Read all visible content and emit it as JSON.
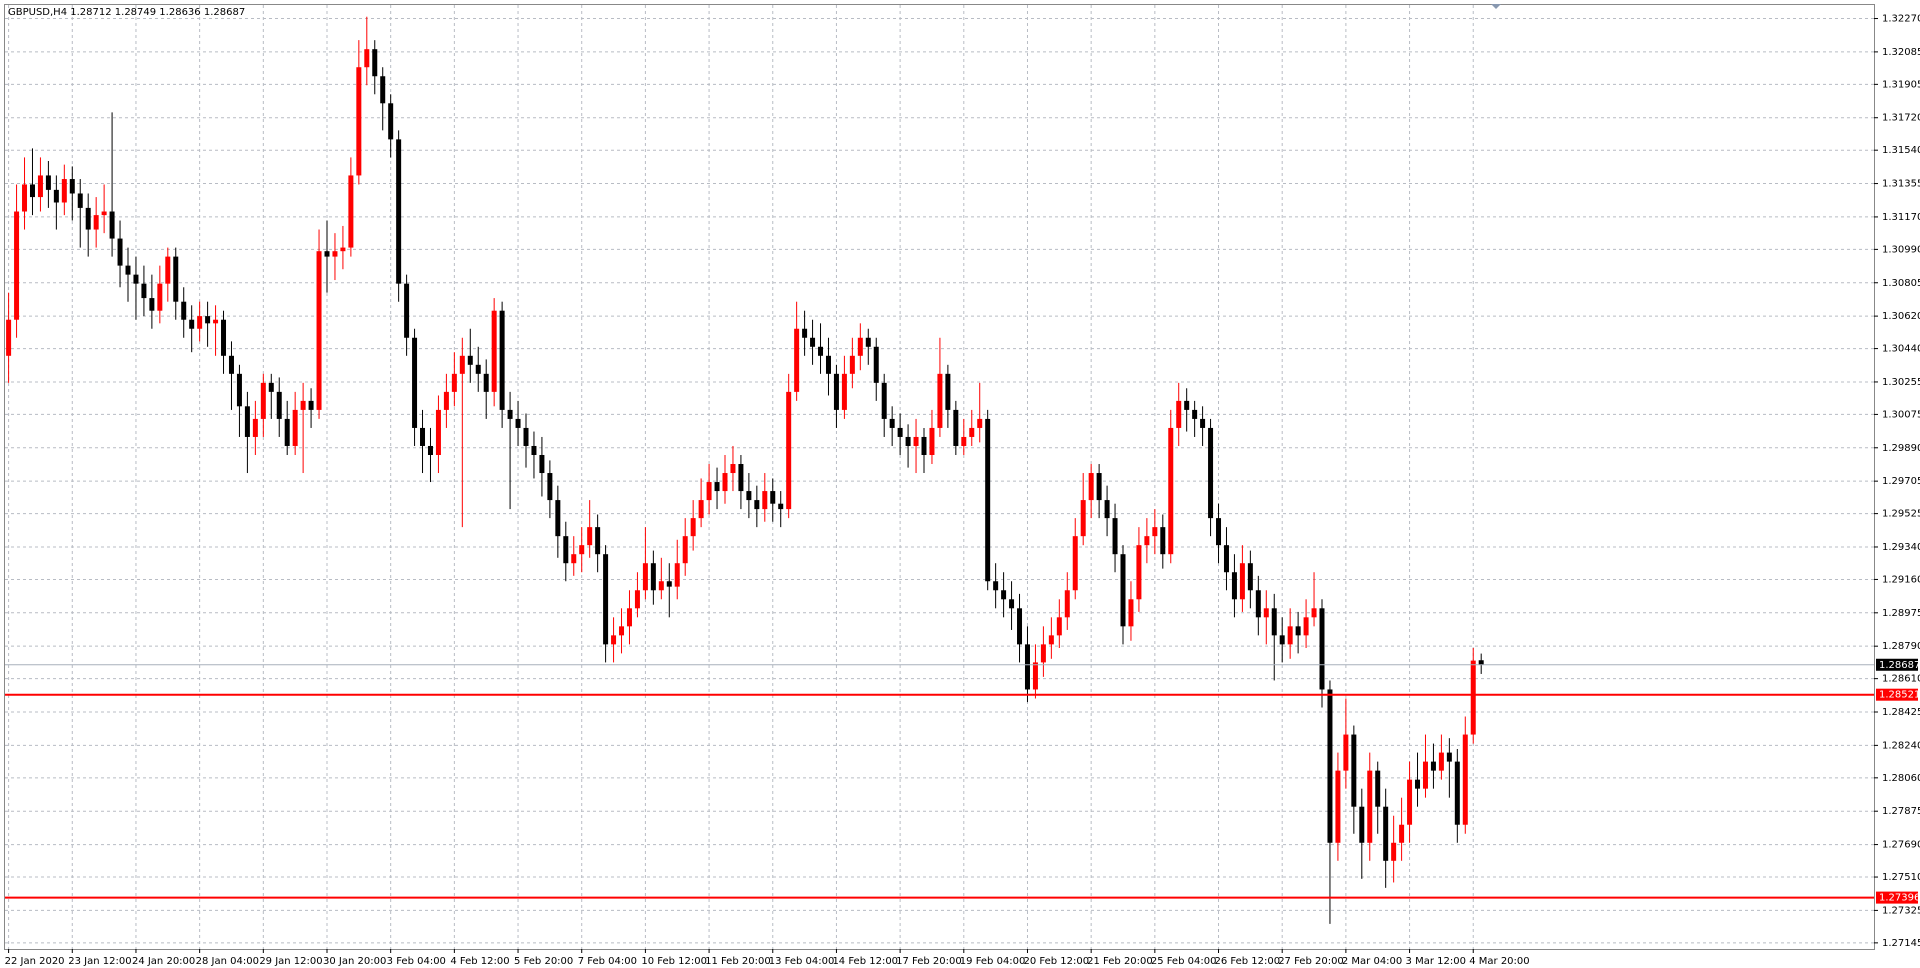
{
  "chart_data": {
    "type": "candlestick",
    "title": "GBPUSD,H4  1.28712 1.28749 1.28636 1.28687",
    "up_color": "#ff0000",
    "down_color": "#000000",
    "grid": true,
    "categories": [
      "22 Jan 2020",
      null,
      null,
      null,
      null,
      null,
      null,
      null,
      "23 Jan 12:00",
      null,
      null,
      null,
      null,
      null,
      null,
      null,
      "24 Jan 20:00",
      null,
      null,
      null,
      null,
      null,
      null,
      null,
      "28 Jan 04:00",
      null,
      null,
      null,
      null,
      null,
      null,
      null,
      "29 Jan 12:00",
      null,
      null,
      null,
      null,
      null,
      null,
      null,
      "30 Jan 20:00",
      null,
      null,
      null,
      null,
      null,
      null,
      null,
      "3 Feb 04:00",
      null,
      null,
      null,
      null,
      null,
      null,
      null,
      "4 Feb 12:00",
      null,
      null,
      null,
      null,
      null,
      null,
      null,
      "5 Feb 20:00",
      null,
      null,
      null,
      null,
      null,
      null,
      null,
      "7 Feb 04:00",
      null,
      null,
      null,
      null,
      null,
      null,
      null,
      "10 Feb 12:00",
      null,
      null,
      null,
      null,
      null,
      null,
      null,
      "11 Feb 20:00",
      null,
      null,
      null,
      null,
      null,
      null,
      null,
      "13 Feb 04:00",
      null,
      null,
      null,
      null,
      null,
      null,
      null,
      "14 Feb 12:00",
      null,
      null,
      null,
      null,
      null,
      null,
      null,
      "17 Feb 20:00",
      null,
      null,
      null,
      null,
      null,
      null,
      null,
      "19 Feb 04:00",
      null,
      null,
      null,
      null,
      null,
      null,
      null,
      "20 Feb 12:00",
      null,
      null,
      null,
      null,
      null,
      null,
      null,
      "21 Feb 20:00",
      null,
      null,
      null,
      null,
      null,
      null,
      null,
      "25 Feb 04:00",
      null,
      null,
      null,
      null,
      null,
      null,
      null,
      "26 Feb 12:00",
      null,
      null,
      null,
      null,
      null,
      null,
      null,
      "27 Feb 20:00",
      null,
      null,
      null,
      null,
      null,
      null,
      null,
      "2 Mar 04:00",
      null,
      null,
      null,
      null,
      null,
      null,
      null,
      "3 Mar 12:00",
      null,
      null,
      null,
      null,
      null,
      null,
      null,
      "4 Mar 20:00",
      null
    ],
    "open": [
      1.304,
      1.306,
      1.312,
      1.3135,
      1.3128,
      1.314,
      1.3132,
      1.3125,
      1.3138,
      1.313,
      1.3122,
      1.311,
      1.3118,
      1.312,
      1.3105,
      1.309,
      1.3085,
      1.308,
      1.3072,
      1.3065,
      1.308,
      1.3095,
      1.307,
      1.306,
      1.3055,
      1.3062,
      1.3058,
      1.306,
      1.304,
      1.303,
      1.3012,
      1.2995,
      1.3005,
      1.3025,
      1.302,
      1.3005,
      1.299,
      1.301,
      1.3015,
      1.301,
      1.3098,
      1.3095,
      1.3098,
      1.31,
      1.314,
      1.32,
      1.321,
      1.3195,
      1.318,
      1.316,
      1.308,
      1.305,
      1.3,
      1.299,
      1.2985,
      1.301,
      1.302,
      1.303,
      1.304,
      1.3035,
      1.303,
      1.302,
      1.3065,
      1.301,
      1.3005,
      1.3,
      1.299,
      1.2985,
      1.2975,
      1.296,
      1.294,
      1.2925,
      1.293,
      1.2935,
      1.2945,
      1.293,
      1.288,
      1.2885,
      1.289,
      1.29,
      1.291,
      1.2925,
      1.291,
      1.2915,
      1.2912,
      1.2925,
      1.294,
      1.295,
      1.296,
      1.297,
      1.2965,
      1.2975,
      1.298,
      1.2965,
      1.296,
      1.2955,
      1.2965,
      1.2958,
      1.2955,
      1.302,
      1.3055,
      1.305,
      1.3045,
      1.304,
      1.303,
      1.301,
      1.303,
      1.304,
      1.305,
      1.3045,
      1.3025,
      1.3005,
      1.3,
      1.2995,
      1.299,
      1.2995,
      1.2985,
      1.3,
      1.303,
      1.301,
      1.299,
      1.2995,
      1.3,
      1.3005,
      1.2915,
      1.291,
      1.2905,
      1.29,
      1.288,
      1.2855,
      1.287,
      1.288,
      1.2885,
      1.2895,
      1.291,
      1.294,
      1.296,
      1.2975,
      1.296,
      1.295,
      1.293,
      1.289,
      1.2905,
      1.2935,
      1.294,
      1.2945,
      1.293,
      1.3,
      1.3015,
      1.301,
      1.3005,
      1.3,
      1.295,
      1.2935,
      1.292,
      1.2905,
      1.2925,
      1.291,
      1.2895,
      1.29,
      1.2885,
      1.288,
      1.289,
      1.2885,
      1.2895,
      1.29,
      1.2855,
      1.277,
      1.281,
      1.283,
      1.279,
      1.277,
      1.281,
      1.279,
      1.276,
      1.277,
      1.278,
      1.2805,
      1.28,
      1.2815,
      1.281,
      1.282,
      1.2815,
      1.278,
      1.283,
      1.28712
    ],
    "high": [
      1.3075,
      1.3135,
      1.315,
      1.3155,
      1.315,
      1.3148,
      1.314,
      1.3146,
      1.3145,
      1.3138,
      1.313,
      1.3128,
      1.3135,
      1.3175,
      1.3115,
      1.31,
      1.3095,
      1.309,
      1.3085,
      1.309,
      1.31,
      1.31,
      1.3078,
      1.3068,
      1.307,
      1.307,
      1.3068,
      1.3065,
      1.3048,
      1.3035,
      1.302,
      1.3015,
      1.303,
      1.303,
      1.3028,
      1.3015,
      1.302,
      1.3025,
      1.3022,
      1.311,
      1.3115,
      1.3108,
      1.3112,
      1.315,
      1.3215,
      1.3228,
      1.3215,
      1.32,
      1.3185,
      1.3165,
      1.3085,
      1.3055,
      1.301,
      1.3,
      1.3018,
      1.303,
      1.3042,
      1.305,
      1.3055,
      1.3045,
      1.3038,
      1.3072,
      1.307,
      1.302,
      1.3015,
      1.3008,
      1.2998,
      1.2995,
      1.2982,
      1.2968,
      1.2948,
      1.294,
      1.2945,
      1.296,
      1.2952,
      1.2935,
      1.2895,
      1.29,
      1.291,
      1.292,
      1.2945,
      1.2932,
      1.2928,
      1.2925,
      1.2938,
      1.295,
      1.296,
      1.2972,
      1.298,
      1.2978,
      1.2985,
      1.299,
      1.2985,
      1.2975,
      1.2968,
      1.2975,
      1.2972,
      1.2965,
      1.303,
      1.307,
      1.3065,
      1.306,
      1.3058,
      1.305,
      1.3035,
      1.304,
      1.305,
      1.3058,
      1.3055,
      1.305,
      1.303,
      1.3012,
      1.3008,
      1.3002,
      1.3005,
      1.3,
      1.301,
      1.305,
      1.3035,
      1.3015,
      1.3005,
      1.301,
      1.3025,
      1.301,
      1.2925,
      1.292,
      1.2915,
      1.2908,
      1.289,
      1.288,
      1.289,
      1.2895,
      1.2905,
      1.292,
      1.295,
      1.2975,
      1.298,
      1.298,
      1.2968,
      1.2958,
      1.2935,
      1.2915,
      1.2945,
      1.295,
      1.2955,
      1.2952,
      1.301,
      1.3025,
      1.3022,
      1.3015,
      1.3012,
      1.3005,
      1.2958,
      1.2945,
      1.293,
      1.2935,
      1.2932,
      1.2918,
      1.291,
      1.2908,
      1.2895,
      1.29,
      1.2898,
      1.2905,
      1.292,
      1.2905,
      1.286,
      1.282,
      1.285,
      1.2835,
      1.28,
      1.282,
      1.2815,
      1.28,
      1.2785,
      1.2795,
      1.2815,
      1.282,
      1.283,
      1.2825,
      1.283,
      1.2828,
      1.2822,
      1.284,
      1.2878,
      1.28749
    ],
    "low": [
      1.3025,
      1.305,
      1.311,
      1.3118,
      1.312,
      1.3122,
      1.311,
      1.3118,
      1.3115,
      1.31,
      1.3095,
      1.31,
      1.3108,
      1.3095,
      1.3078,
      1.307,
      1.306,
      1.3062,
      1.3055,
      1.3058,
      1.307,
      1.306,
      1.305,
      1.3042,
      1.3048,
      1.3045,
      1.304,
      1.303,
      1.301,
      1.2995,
      1.2975,
      1.2985,
      1.2995,
      1.3005,
      1.2995,
      1.2985,
      1.2985,
      1.2975,
      1.3,
      1.3005,
      1.3075,
      1.3082,
      1.3088,
      1.3095,
      1.3135,
      1.319,
      1.3185,
      1.3165,
      1.315,
      1.307,
      1.304,
      1.299,
      1.2975,
      1.297,
      1.2975,
      1.3,
      1.3012,
      1.2945,
      1.3025,
      1.302,
      1.3005,
      1.3012,
      1.3,
      1.2955,
      1.299,
      1.2978,
      1.2972,
      1.2962,
      1.295,
      1.2928,
      1.2915,
      1.2918,
      1.292,
      1.2928,
      1.292,
      1.287,
      1.287,
      1.2875,
      1.288,
      1.2895,
      1.2905,
      1.2902,
      1.2905,
      1.2895,
      1.2905,
      1.2918,
      1.2932,
      1.2945,
      1.2952,
      1.2955,
      1.2958,
      1.2965,
      1.2955,
      1.295,
      1.2945,
      1.2948,
      1.2948,
      1.2945,
      1.295,
      1.3015,
      1.304,
      1.3035,
      1.303,
      1.3018,
      1.3,
      1.3005,
      1.3022,
      1.3032,
      1.3035,
      1.3015,
      1.2995,
      1.299,
      1.2985,
      1.2978,
      1.2975,
      1.2975,
      1.298,
      1.2995,
      1.3,
      1.2985,
      1.2985,
      1.299,
      1.2992,
      1.291,
      1.29,
      1.2895,
      1.2888,
      1.287,
      1.2848,
      1.285,
      1.2862,
      1.2872,
      1.2878,
      1.2888,
      1.2905,
      1.2935,
      1.295,
      1.295,
      1.294,
      1.292,
      1.288,
      1.2882,
      1.2898,
      1.2925,
      1.293,
      1.2922,
      1.2925,
      1.299,
      1.2998,
      1.2995,
      1.299,
      1.294,
      1.2925,
      1.291,
      1.2895,
      1.2898,
      1.29,
      1.2885,
      1.288,
      1.286,
      1.287,
      1.2872,
      1.2875,
      1.2878,
      1.289,
      1.2845,
      1.2725,
      1.276,
      1.28,
      1.2775,
      1.275,
      1.276,
      1.2775,
      1.2745,
      1.2748,
      1.276,
      1.277,
      1.279,
      1.2795,
      1.28,
      1.2805,
      1.2795,
      1.277,
      1.2775,
      1.2825,
      1.28636
    ],
    "close": [
      1.306,
      1.312,
      1.3135,
      1.3128,
      1.314,
      1.3132,
      1.3125,
      1.3138,
      1.313,
      1.3122,
      1.311,
      1.3118,
      1.312,
      1.3105,
      1.309,
      1.3085,
      1.308,
      1.3072,
      1.3065,
      1.308,
      1.3095,
      1.307,
      1.306,
      1.3055,
      1.3062,
      1.3058,
      1.306,
      1.304,
      1.303,
      1.3012,
      1.2995,
      1.3005,
      1.3025,
      1.302,
      1.3005,
      1.299,
      1.301,
      1.3015,
      1.301,
      1.3098,
      1.3095,
      1.3098,
      1.31,
      1.314,
      1.32,
      1.321,
      1.3195,
      1.318,
      1.316,
      1.308,
      1.305,
      1.3,
      1.299,
      1.2985,
      1.301,
      1.302,
      1.303,
      1.304,
      1.3035,
      1.303,
      1.302,
      1.3065,
      1.301,
      1.3005,
      1.3,
      1.299,
      1.2985,
      1.2975,
      1.296,
      1.294,
      1.2925,
      1.293,
      1.2935,
      1.2945,
      1.293,
      1.288,
      1.2885,
      1.289,
      1.29,
      1.291,
      1.2925,
      1.291,
      1.2915,
      1.2912,
      1.2925,
      1.294,
      1.295,
      1.296,
      1.297,
      1.2965,
      1.2975,
      1.298,
      1.2965,
      1.296,
      1.2955,
      1.2965,
      1.2958,
      1.2955,
      1.302,
      1.3055,
      1.305,
      1.3045,
      1.304,
      1.303,
      1.301,
      1.303,
      1.304,
      1.305,
      1.3045,
      1.3025,
      1.3005,
      1.3,
      1.2995,
      1.299,
      1.2995,
      1.2985,
      1.3,
      1.303,
      1.301,
      1.299,
      1.2995,
      1.3,
      1.3005,
      1.2915,
      1.291,
      1.2905,
      1.29,
      1.288,
      1.2855,
      1.287,
      1.288,
      1.2885,
      1.2895,
      1.291,
      1.294,
      1.296,
      1.2975,
      1.296,
      1.295,
      1.293,
      1.289,
      1.2905,
      1.2935,
      1.294,
      1.2945,
      1.293,
      1.3,
      1.3015,
      1.301,
      1.3005,
      1.3,
      1.295,
      1.2935,
      1.292,
      1.2905,
      1.2925,
      1.291,
      1.2895,
      1.29,
      1.2885,
      1.288,
      1.289,
      1.2885,
      1.2895,
      1.29,
      1.2855,
      1.277,
      1.281,
      1.283,
      1.279,
      1.277,
      1.281,
      1.279,
      1.276,
      1.277,
      1.278,
      1.2805,
      1.28,
      1.2815,
      1.281,
      1.282,
      1.2815,
      1.278,
      1.283,
      1.2871,
      1.28687
    ],
    "ylim": [
      1.27111,
      1.32345
    ],
    "yticks": [
      {
        "value": 1.3227,
        "label": "1.32270"
      },
      1.32085,
      1.31905,
      {
        "value": 1.3172,
        "label": "1.31720"
      },
      {
        "value": 1.3154,
        "label": "1.31540"
      },
      1.31355,
      {
        "value": 1.3117,
        "label": "1.31170"
      },
      {
        "value": 1.3099,
        "label": "1.30990"
      },
      1.30805,
      {
        "value": 1.3062,
        "label": "1.30620"
      },
      {
        "value": 1.3044,
        "label": "1.30440"
      },
      1.30255,
      1.30075,
      {
        "value": 1.2989,
        "label": "1.29890"
      },
      1.29705,
      1.29525,
      {
        "value": 1.2934,
        "label": "1.29340"
      },
      {
        "value": 1.2916,
        "label": "1.29160"
      },
      1.28975,
      {
        "value": 1.2879,
        "label": "1.28790"
      },
      {
        "value": 1.2861,
        "label": "1.28610"
      },
      1.28425,
      {
        "value": 1.2824,
        "label": "1.28240"
      },
      {
        "value": 1.2806,
        "label": "1.28060"
      },
      1.27875,
      {
        "value": 1.2769,
        "label": "1.27690"
      },
      {
        "value": 1.2751,
        "label": "1.27510"
      },
      1.27325,
      1.27145
    ],
    "hlines": [
      {
        "value": 1.28687,
        "color": "#a8b0bc"
      },
      {
        "value": 1.28521,
        "color": "#ff0000"
      },
      {
        "value": 1.27396,
        "color": "#ff0000"
      }
    ]
  }
}
